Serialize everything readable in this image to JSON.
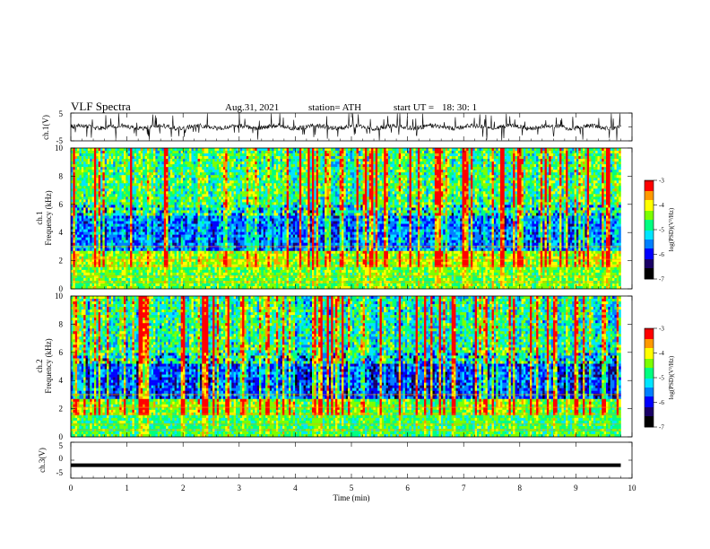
{
  "header": {
    "title": "VLF  Spectra",
    "date": "Aug.31, 2021",
    "station": "station= ATH",
    "start_label": "start  UT  =",
    "start_time": "18: 30: 1"
  },
  "colors": {
    "ramp": [
      "#000000",
      "#1a0066",
      "#0000ff",
      "#0080ff",
      "#00e5ff",
      "#00ff80",
      "#7cff00",
      "#ffff00",
      "#ff9900",
      "#ff0000",
      "#cc0000",
      "#ffffff"
    ]
  },
  "chart_data": [
    {
      "type": "line",
      "id": "ch1-waveform",
      "ylabel": "ch.1(V)",
      "ylim": [
        -5,
        5
      ],
      "yticks": [
        "5",
        "-5"
      ],
      "xlim": [
        0,
        10
      ],
      "baseline_v": 0,
      "note_amplitude_v": 1.5
    },
    {
      "type": "heatmap",
      "id": "ch1-spectrogram",
      "ylabel": "ch.1\nFrequency  (kHz)",
      "ylim": [
        0,
        10
      ],
      "yticks": [
        "0",
        "2",
        "4",
        "6",
        "8",
        "10"
      ],
      "xlim": [
        0,
        10
      ],
      "data_end_min": 9.8,
      "colorbar": {
        "label": "log(PSD)(V²/Hz)",
        "range": [
          -7,
          -3
        ],
        "ticks": [
          "-3",
          "-4",
          "-5",
          "-6",
          "-7"
        ]
      }
    },
    {
      "type": "heatmap",
      "id": "ch2-spectrogram",
      "ylabel": "ch.2\nFrequency  (kHz)",
      "ylim": [
        0,
        10
      ],
      "yticks": [
        "0",
        "2",
        "4",
        "6",
        "8",
        "10"
      ],
      "xlim": [
        0,
        10
      ],
      "data_end_min": 9.8,
      "colorbar": {
        "label": "log(PSD)(V²/Hz)",
        "range": [
          -7,
          -3
        ],
        "ticks": [
          "-3",
          "-4",
          "-5",
          "-6",
          "-7"
        ]
      }
    },
    {
      "type": "line",
      "id": "ch3-waveform",
      "ylabel": "ch.3(V)",
      "ylim": [
        -5,
        5
      ],
      "yticks": [
        "5",
        "0",
        "-5"
      ],
      "xlim": [
        0,
        10
      ],
      "baseline_v": -1.4
    }
  ],
  "x_axis": {
    "label": "Time  (min)",
    "ticks": [
      "0",
      "1",
      "2",
      "3",
      "4",
      "5",
      "6",
      "7",
      "8",
      "9",
      "10"
    ]
  }
}
